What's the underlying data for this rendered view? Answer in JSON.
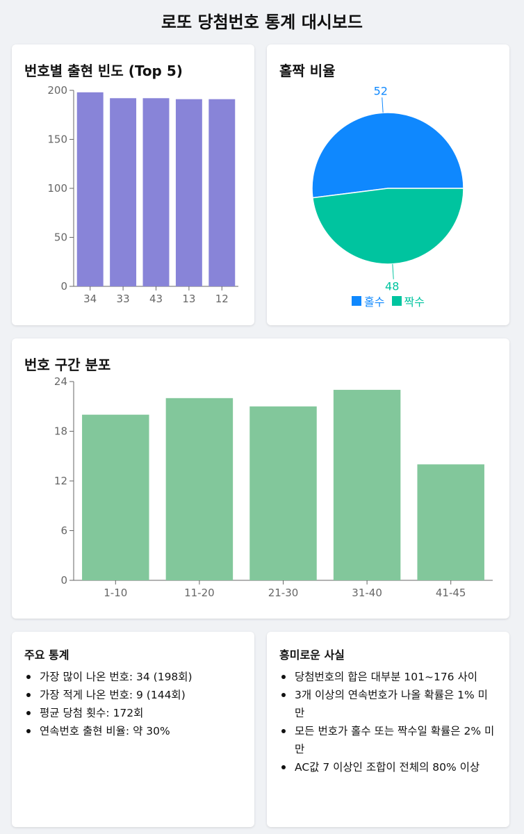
{
  "page": {
    "title": "로또 당첨번호 통계 대시보드"
  },
  "colors": {
    "bar_top5": "#8884d8",
    "bar_range": "#82c79b",
    "odd": "#0f88fe",
    "even": "#00c49f",
    "axis": "#666666"
  },
  "chart_data": [
    {
      "type": "bar",
      "title": "번호별 출현 빈도 (Top 5)",
      "categories": [
        "34",
        "33",
        "43",
        "13",
        "12"
      ],
      "values": [
        198,
        192,
        192,
        191,
        191
      ],
      "ylim": [
        0,
        200
      ],
      "yticks": [
        0,
        50,
        100,
        150,
        200
      ],
      "grid": false,
      "xlabel": "",
      "ylabel": ""
    },
    {
      "type": "pie",
      "title": "홀짝 비율",
      "labels": [
        "홀수",
        "짝수"
      ],
      "values": [
        52,
        48
      ],
      "legend": "bottom"
    },
    {
      "type": "bar",
      "title": "번호 구간 분포",
      "categories": [
        "1-10",
        "11-20",
        "21-30",
        "31-40",
        "41-45"
      ],
      "values": [
        20,
        22,
        21,
        23,
        14
      ],
      "ylim": [
        0,
        24
      ],
      "yticks": [
        0,
        6,
        12,
        18,
        24
      ],
      "grid": false,
      "xlabel": "",
      "ylabel": ""
    }
  ],
  "stats": {
    "title": "주요 통계",
    "items": [
      "가장 많이 나온 번호: 34 (198회)",
      "가장 적게 나온 번호: 9 (144회)",
      "평균 당첨 횟수: 172회",
      "연속번호 출현 비율: 약 30%"
    ]
  },
  "facts": {
    "title": "흥미로운 사실",
    "items": [
      "당첨번호의 합은 대부분 101~176 사이",
      "3개 이상의 연속번호가 나올 확률은 1% 미만",
      "모든 번호가 홀수 또는 짝수일 확률은 2% 미만",
      "AC값 7 이상인 조합이 전체의 80% 이상"
    ]
  }
}
